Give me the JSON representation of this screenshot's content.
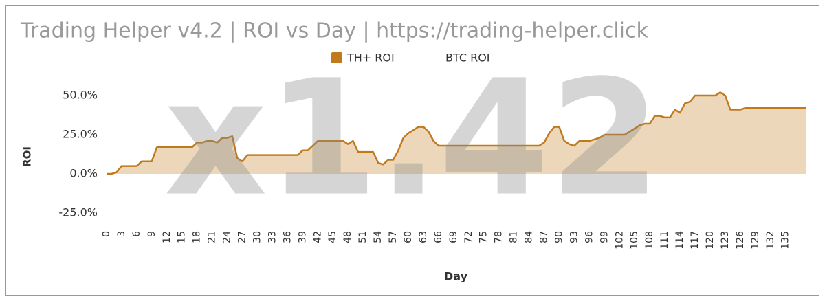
{
  "chart_data": {
    "type": "line",
    "title": "Trading Helper v4.2 | ROI vs Day | https://trading-helper.click",
    "watermark": "x1.42",
    "xlabel": "Day",
    "ylabel": "ROI",
    "x": [
      0,
      1,
      2,
      3,
      4,
      5,
      6,
      7,
      8,
      9,
      10,
      11,
      12,
      13,
      14,
      15,
      16,
      17,
      18,
      19,
      20,
      21,
      22,
      23,
      24,
      25,
      26,
      27,
      28,
      29,
      30,
      31,
      32,
      33,
      34,
      35,
      36,
      37,
      38,
      39,
      40,
      41,
      42,
      43,
      44,
      45,
      46,
      47,
      48,
      49,
      50,
      51,
      52,
      53,
      54,
      55,
      56,
      57,
      58,
      59,
      60,
      61,
      62,
      63,
      64,
      65,
      66,
      67,
      68,
      69,
      70,
      71,
      72,
      73,
      74,
      75,
      76,
      77,
      78,
      79,
      80,
      81,
      82,
      83,
      84,
      85,
      86,
      87,
      88,
      89,
      90,
      91,
      92,
      93,
      94,
      95,
      96,
      97,
      98,
      99,
      100,
      101,
      102,
      103,
      104,
      105,
      106,
      107,
      108,
      109,
      110,
      111,
      112,
      113,
      114,
      115,
      116,
      117,
      118,
      119,
      120,
      121,
      122,
      123,
      124,
      125,
      126,
      127,
      128,
      129,
      130,
      131,
      132,
      133,
      134,
      135,
      136,
      137,
      138,
      139
    ],
    "series": [
      {
        "name": "TH+ ROI",
        "color": "#c07a1c",
        "values": [
          0,
          0,
          1,
          5,
          5,
          5,
          5,
          8,
          8,
          8,
          17,
          17,
          17,
          17,
          17,
          17,
          17,
          17,
          20,
          20,
          21,
          21,
          20,
          23,
          23,
          24,
          10,
          8,
          12,
          12,
          12,
          12,
          12,
          12,
          12,
          12,
          12,
          12,
          12,
          15,
          15,
          18,
          21,
          21,
          21,
          21,
          21,
          21,
          19,
          21,
          14,
          14,
          14,
          14,
          7,
          6,
          9,
          9,
          15,
          23,
          26,
          28,
          30,
          30,
          27,
          21,
          18,
          18,
          18,
          18,
          18,
          18,
          18,
          18,
          18,
          18,
          18,
          18,
          18,
          18,
          18,
          18,
          18,
          18,
          18,
          18,
          18,
          20,
          26,
          30,
          30,
          21,
          19,
          18,
          21,
          21,
          21,
          22,
          23,
          25,
          25,
          25,
          25,
          25,
          27,
          29,
          31,
          32,
          32,
          37,
          37,
          36,
          36,
          41,
          39,
          45,
          46,
          50,
          50,
          50,
          50,
          50,
          52,
          50,
          41,
          41,
          41,
          42,
          42,
          42,
          42,
          42,
          42,
          42,
          42,
          42,
          42,
          42,
          42,
          42
        ]
      },
      {
        "name": "BTC ROI"
      }
    ],
    "xlim": [
      0,
      139
    ],
    "xticks": [
      0,
      3,
      6,
      9,
      12,
      15,
      18,
      21,
      24,
      27,
      30,
      33,
      36,
      39,
      42,
      45,
      48,
      51,
      54,
      57,
      60,
      63,
      66,
      69,
      72,
      75,
      78,
      81,
      84,
      87,
      90,
      93,
      96,
      99,
      102,
      105,
      108,
      111,
      114,
      117,
      120,
      123,
      126,
      129,
      132,
      135
    ],
    "ylim": [
      -25,
      50
    ],
    "yticks": [
      {
        "value": -25,
        "label": "-25.0%"
      },
      {
        "value": 0,
        "label": "0.0%"
      },
      {
        "value": 25,
        "label": "25.0%"
      },
      {
        "value": 50,
        "label": "50.0%"
      }
    ],
    "grid": false,
    "legend": "top"
  }
}
